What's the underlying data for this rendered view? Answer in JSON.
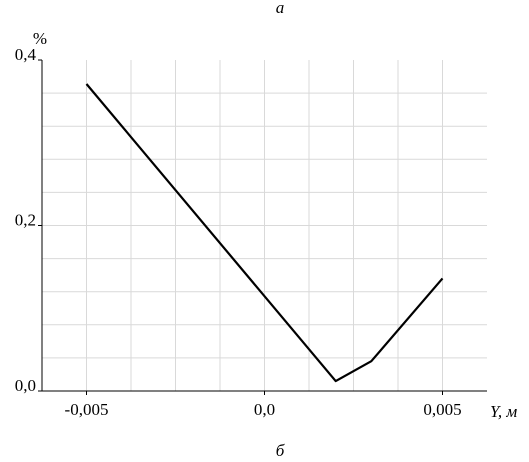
{
  "chart_data": {
    "type": "line",
    "title": "а",
    "caption": "б",
    "y_label": "%",
    "x_label": "Y, м",
    "x": [
      -0.005,
      0.002,
      0.003,
      0.005
    ],
    "series": [
      {
        "color": "#000000",
        "values": [
          0.371,
          0.012,
          0.036,
          0.136
        ]
      }
    ],
    "xlim": [
      -0.00625,
      0.00625
    ],
    "ylim": [
      0,
      0.4
    ],
    "xticks": [
      {
        "value": -0.005,
        "label": "-0,005"
      },
      {
        "value": 0,
        "label": "0,0"
      },
      {
        "value": 0.005,
        "label": "0,005"
      }
    ],
    "yticks": [
      {
        "value": 0,
        "label": "0,0"
      },
      {
        "value": 0.2,
        "label": "0,2"
      },
      {
        "value": 0.4,
        "label": "0,4"
      }
    ],
    "xgrid": [
      -0.005,
      -0.00375,
      -0.0025,
      -0.00125,
      0,
      0.00125,
      0.0025,
      0.00375,
      0.005
    ],
    "ygrid": [
      0.04,
      0.08,
      0.12,
      0.16,
      0.2,
      0.24,
      0.28,
      0.32,
      0.36
    ],
    "grid": true
  }
}
